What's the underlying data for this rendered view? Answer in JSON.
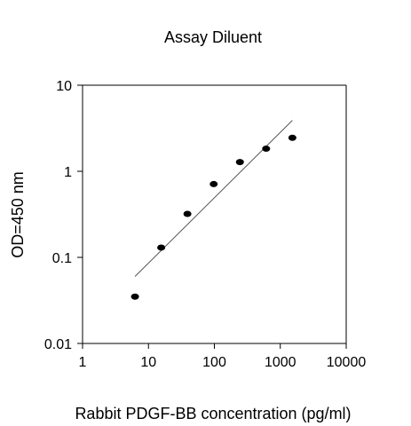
{
  "chart_data": {
    "type": "scatter",
    "title": "Assay Diluent",
    "xlabel": "Rabbit PDGF-BB concentration (pg/ml)",
    "ylabel": "OD=450 nm",
    "x_scale": "log",
    "y_scale": "log",
    "xlim": [
      1,
      10000
    ],
    "ylim": [
      0.01,
      10
    ],
    "x_ticks": [
      1,
      10,
      100,
      1000,
      10000
    ],
    "x_tick_labels": [
      "1",
      "10",
      "100",
      "1000",
      "10000"
    ],
    "y_ticks": [
      0.01,
      0.1,
      1,
      10
    ],
    "y_tick_labels": [
      "0.01",
      "0.1",
      "1",
      "10"
    ],
    "grid": false,
    "legend": "none",
    "series": [
      {
        "x": [
          6.25,
          15.6,
          39,
          97.7,
          244,
          610,
          1526
        ],
        "y": [
          0.035,
          0.13,
          0.32,
          0.71,
          1.28,
          1.83,
          2.45
        ]
      }
    ],
    "trendline": {
      "x": [
        6.25,
        1526
      ],
      "y": [
        0.06,
        3.9
      ]
    },
    "colors": {
      "points": "#000000",
      "line": "#555555",
      "axes": "#000000"
    }
  }
}
